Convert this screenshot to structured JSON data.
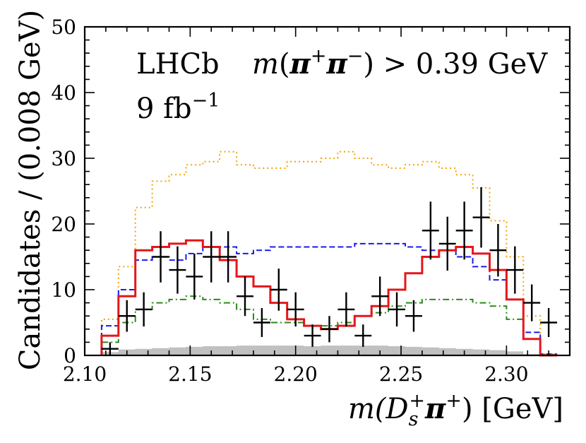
{
  "chart_data": {
    "type": "histogram",
    "title": "",
    "xlabel_main": "m(D",
    "xlabel_sub": "s",
    "xlabel_sup": "+",
    "xlabel_mid": "π",
    "xlabel_sup2": "+",
    "xlabel_tail": ") [GeV]",
    "ylabel": "Candidates / (0.008 GeV)",
    "xlim": [
      2.1,
      2.33
    ],
    "ylim": [
      0,
      50
    ],
    "x_ticks": [
      2.1,
      2.15,
      2.2,
      2.25,
      2.3
    ],
    "x_tick_labels": [
      "2.10",
      "2.15",
      "2.20",
      "2.25",
      "2.30"
    ],
    "y_ticks": [
      0,
      10,
      20,
      30,
      40,
      50
    ],
    "y_tick_labels": [
      "0",
      "10",
      "20",
      "30",
      "40",
      "50"
    ],
    "annotations": {
      "experiment": "LHCb",
      "lumi_base": "9 fb",
      "lumi_exp": "−1",
      "cut_m": "m",
      "cut_open": "(",
      "cut_pi1": "π",
      "cut_sup1": "+",
      "cut_pi2": "π",
      "cut_sup2": "−",
      "cut_rest": ") > 0.39 GeV"
    },
    "data_points": {
      "x": [
        2.112,
        2.12,
        2.128,
        2.136,
        2.144,
        2.152,
        2.16,
        2.168,
        2.176,
        2.184,
        2.192,
        2.2,
        2.208,
        2.216,
        2.224,
        2.232,
        2.24,
        2.248,
        2.256,
        2.264,
        2.272,
        2.28,
        2.288,
        2.296,
        2.304,
        2.312,
        2.32
      ],
      "y": [
        1,
        6,
        7,
        15,
        13,
        12,
        15,
        15,
        9,
        5,
        10,
        7,
        3,
        4,
        7,
        3,
        9,
        7,
        6,
        19,
        17,
        19,
        21,
        16,
        13,
        8,
        5
      ],
      "yerr": [
        1.0,
        2.4,
        2.6,
        3.9,
        3.6,
        3.5,
        3.9,
        3.9,
        3.0,
        2.2,
        3.2,
        2.6,
        1.7,
        2.0,
        2.6,
        1.7,
        3.0,
        2.6,
        2.4,
        4.4,
        4.1,
        4.4,
        4.6,
        4.0,
        3.6,
        2.8,
        2.2
      ],
      "xerr": 0.004
    },
    "bin_edges": [
      2.108,
      2.116,
      2.124,
      2.132,
      2.14,
      2.148,
      2.156,
      2.164,
      2.172,
      2.18,
      2.188,
      2.196,
      2.204,
      2.212,
      2.22,
      2.228,
      2.236,
      2.244,
      2.252,
      2.26,
      2.268,
      2.276,
      2.284,
      2.292,
      2.3,
      2.308,
      2.316,
      2.324
    ],
    "series": [
      {
        "name": "orange-dotted",
        "color": "#f5a300",
        "style": "dotted",
        "values": [
          5.5,
          13.5,
          22.5,
          26.5,
          27.5,
          29.0,
          29.5,
          31.0,
          29.0,
          28.5,
          28.5,
          29.5,
          29.5,
          30.0,
          31.0,
          30.0,
          29.0,
          28.5,
          29.0,
          29.5,
          28.5,
          27.5,
          25.5,
          20.5,
          15.0,
          6.0,
          0.2
        ]
      },
      {
        "name": "blue-dashed",
        "color": "#1a1aee",
        "style": "dashed",
        "values": [
          4.5,
          10.0,
          14.5,
          15.0,
          14.5,
          15.5,
          16.5,
          16.5,
          15.5,
          16.0,
          16.5,
          16.5,
          16.5,
          16.5,
          16.5,
          17.0,
          17.0,
          17.0,
          16.5,
          16.0,
          16.0,
          15.0,
          13.5,
          11.5,
          8.5,
          3.5,
          0.2
        ]
      },
      {
        "name": "green-dashdot",
        "color": "#2a8a1a",
        "style": "dashdot",
        "values": [
          2.0,
          5.0,
          7.0,
          8.0,
          8.5,
          9.0,
          8.5,
          8.0,
          7.0,
          5.5,
          5.0,
          5.0,
          4.5,
          4.5,
          5.0,
          6.0,
          6.5,
          7.5,
          8.0,
          8.5,
          8.5,
          8.5,
          8.0,
          7.5,
          5.5,
          2.5,
          0.1
        ]
      },
      {
        "name": "red-solid",
        "color": "#e4161a",
        "style": "solid",
        "values": [
          3.0,
          9.0,
          16.0,
          16.5,
          17.0,
          17.5,
          16.5,
          14.5,
          12.0,
          10.5,
          8.0,
          5.5,
          4.5,
          4.0,
          4.5,
          6.0,
          7.5,
          10.0,
          12.5,
          15.0,
          16.0,
          16.5,
          15.5,
          13.0,
          8.5,
          2.5,
          0.0
        ]
      },
      {
        "name": "grey-filled",
        "color": "#c0c0c0",
        "style": "filled",
        "values": [
          0.5,
          0.9,
          1.0,
          1.1,
          1.2,
          1.3,
          1.4,
          1.4,
          1.5,
          1.5,
          1.5,
          1.5,
          1.4,
          1.5,
          1.5,
          1.5,
          1.5,
          1.4,
          1.3,
          1.2,
          1.1,
          1.0,
          0.9,
          0.8,
          0.6,
          0.2,
          0.0
        ]
      }
    ]
  }
}
